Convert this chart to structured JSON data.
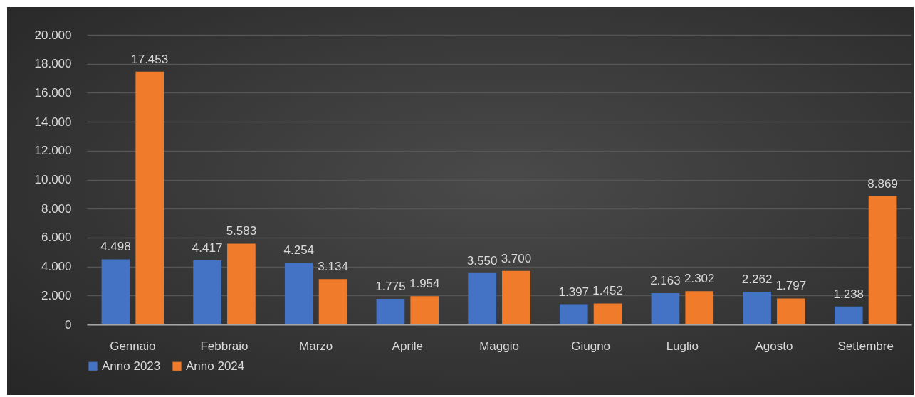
{
  "chart_data": {
    "type": "bar",
    "categories": [
      "Gennaio",
      "Febbraio",
      "Marzo",
      "Aprile",
      "Maggio",
      "Giugno",
      "Luglio",
      "Agosto",
      "Settembre"
    ],
    "series": [
      {
        "name": "Anno 2023",
        "color": "#4472c4",
        "values": [
          4498,
          4417,
          4254,
          1775,
          3550,
          1397,
          2163,
          2262,
          1238
        ],
        "value_labels": [
          "4.498",
          "4.417",
          "4.254",
          "1.775",
          "3.550",
          "1.397",
          "2.163",
          "2.262",
          "1.238"
        ]
      },
      {
        "name": "Anno 2024",
        "color": "#f07b2b",
        "values": [
          17453,
          5583,
          3134,
          1954,
          3700,
          1452,
          2302,
          1797,
          8869
        ],
        "value_labels": [
          "17.453",
          "5.583",
          "3.134",
          "1.954",
          "3.700",
          "1.452",
          "2.302",
          "1.797",
          "8.869"
        ]
      }
    ],
    "ylim": [
      0,
      20000
    ],
    "yticks": [
      0,
      {
        "value": 2000,
        "label": "2.000"
      },
      {
        "value": 4000,
        "label": "4.000"
      },
      {
        "value": 6000,
        "label": "6.000"
      },
      {
        "value": 8000,
        "label": "8.000"
      },
      {
        "value": 10000,
        "label": "10.000"
      },
      {
        "value": 12000,
        "label": "12.000"
      },
      {
        "value": 14000,
        "label": "14.000"
      },
      {
        "value": 16000,
        "label": "16.000"
      },
      {
        "value": 18000,
        "label": "18.000"
      },
      {
        "value": 20000,
        "label": "20.000"
      }
    ],
    "grid": true,
    "legend": "bottom"
  }
}
